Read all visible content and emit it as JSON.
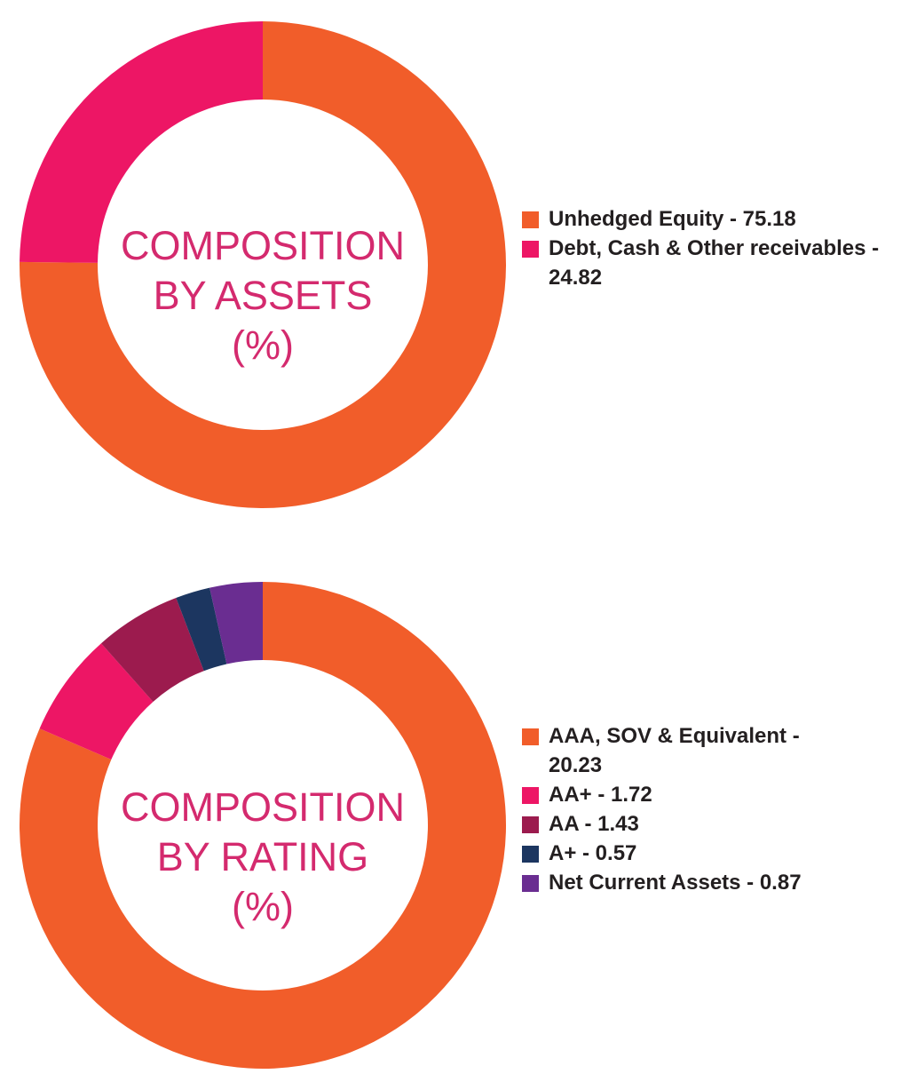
{
  "chart_data": [
    {
      "type": "pie",
      "variant": "donut",
      "center_title_lines": [
        "COMPOSITION",
        "BY ASSETS",
        "(%)"
      ],
      "series": [
        {
          "name": "Unhedged Equity",
          "value": 75.18,
          "color": "#f15d2a",
          "legend_label": "Unhedged Equity - 75.18"
        },
        {
          "name": "Debt, Cash & Other receivables",
          "value": 24.82,
          "color": "#ed1665",
          "legend_label": "Debt, Cash & Other receivables - 24.82"
        }
      ]
    },
    {
      "type": "pie",
      "variant": "donut",
      "center_title_lines": [
        "COMPOSITION",
        "BY RATING",
        "(%)"
      ],
      "series": [
        {
          "name": "AAA, SOV & Equivalent",
          "value": 20.23,
          "color": "#f15d2a",
          "legend_label": "AAA, SOV & Equivalent - 20.23"
        },
        {
          "name": "AA+",
          "value": 1.72,
          "color": "#ed1665",
          "legend_label": "AA+ - 1.72"
        },
        {
          "name": "AA",
          "value": 1.43,
          "color": "#9c1b4e",
          "legend_label": "AA - 1.43"
        },
        {
          "name": "A+",
          "value": 0.57,
          "color": "#1c3660",
          "legend_label": "A+ - 0.57"
        },
        {
          "name": "Net Current Assets",
          "value": 0.87,
          "color": "#6a2d91",
          "legend_label": "Net Current Assets - 0.87"
        }
      ]
    }
  ]
}
